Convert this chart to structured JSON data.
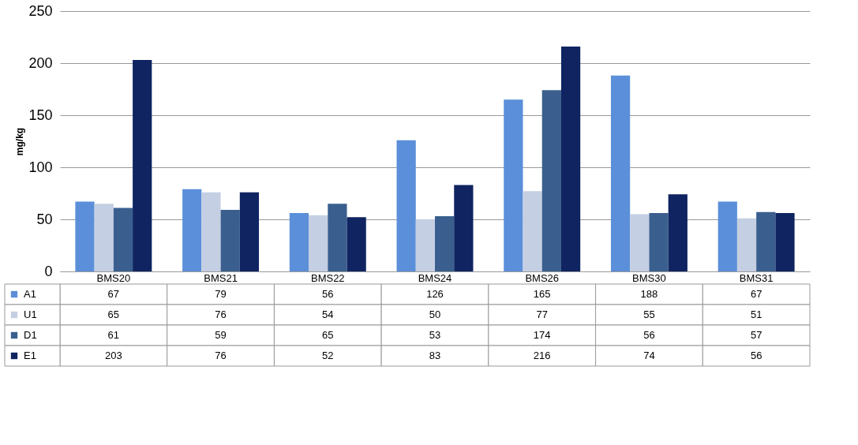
{
  "chart_data": {
    "type": "bar",
    "ylabel": "mg/kg",
    "categories": [
      "BMS20",
      "BMS21",
      "BMS22",
      "BMS24",
      "BMS26",
      "BMS30",
      "BMS31"
    ],
    "series": [
      {
        "name": "A1",
        "color": "#5b8fd9",
        "values": [
          67,
          79,
          56,
          126,
          165,
          188,
          67
        ]
      },
      {
        "name": "U1",
        "color": "#c5cfe3",
        "values": [
          65,
          76,
          54,
          50,
          77,
          55,
          51
        ]
      },
      {
        "name": "D1",
        "color": "#3a5f8f",
        "values": [
          61,
          59,
          65,
          53,
          174,
          56,
          57
        ]
      },
      {
        "name": "E1",
        "color": "#0f2461",
        "values": [
          203,
          76,
          52,
          83,
          216,
          74,
          56
        ]
      }
    ],
    "ylim": [
      0,
      250
    ],
    "yticks": [
      0,
      50,
      100,
      150,
      200,
      250
    ],
    "grid": "y",
    "legend": "bottom",
    "data_labels": true
  }
}
